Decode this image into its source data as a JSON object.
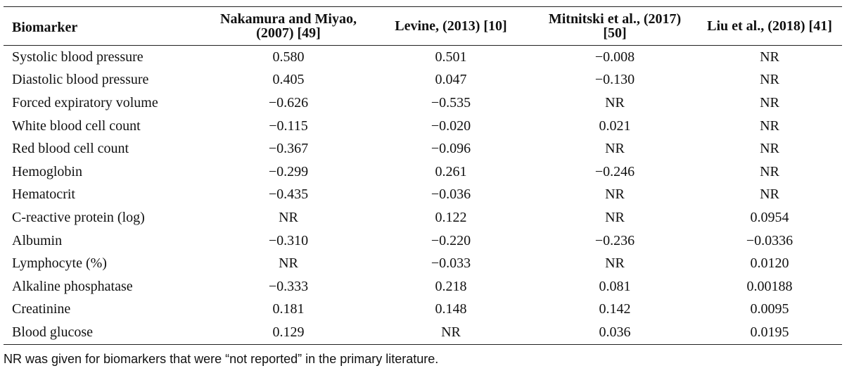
{
  "table": {
    "headers": [
      "Biomarker",
      "Nakamura and Miyao, (2007) [49]",
      "Levine, (2013) [10]",
      "Mitnitski et al., (2017) [50]",
      "Liu et al., (2018) [41]"
    ],
    "rows": [
      [
        "Systolic blood pressure",
        "0.580",
        "0.501",
        "−0.008",
        "NR"
      ],
      [
        "Diastolic blood pressure",
        "0.405",
        "0.047",
        "−0.130",
        "NR"
      ],
      [
        "Forced expiratory volume",
        "−0.626",
        "−0.535",
        "NR",
        "NR"
      ],
      [
        "White blood cell count",
        "−0.115",
        "−0.020",
        "0.021",
        "NR"
      ],
      [
        "Red blood cell count",
        "−0.367",
        "−0.096",
        "NR",
        "NR"
      ],
      [
        "Hemoglobin",
        "−0.299",
        "0.261",
        "−0.246",
        "NR"
      ],
      [
        "Hematocrit",
        "−0.435",
        "−0.036",
        "NR",
        "NR"
      ],
      [
        "C-reactive protein (log)",
        "NR",
        "0.122",
        "NR",
        "0.0954"
      ],
      [
        "Albumin",
        "−0.310",
        "−0.220",
        "−0.236",
        "−0.0336"
      ],
      [
        "Lymphocyte (%)",
        "NR",
        "−0.033",
        "NR",
        "0.0120"
      ],
      [
        "Alkaline phosphatase",
        "−0.333",
        "0.218",
        "0.081",
        "0.00188"
      ],
      [
        "Creatinine",
        "0.181",
        "0.148",
        "0.142",
        "0.0095"
      ],
      [
        "Blood glucose",
        "0.129",
        "NR",
        "0.036",
        "0.0195"
      ]
    ]
  },
  "footnote": "NR was given for biomarkers that were “not reported” in the primary literature."
}
